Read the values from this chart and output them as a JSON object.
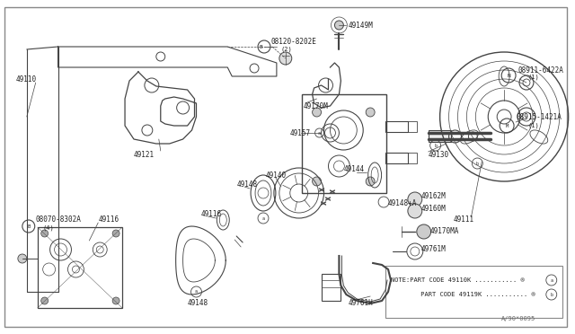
{
  "bg_color": "#ffffff",
  "line_color": "#444444",
  "text_color": "#222222",
  "note_line1": "NOTE:PART CODE 49110K ........... ®",
  "note_line2": "     PART CODE 49119K ........... ®",
  "watermark": "A/90*0095"
}
